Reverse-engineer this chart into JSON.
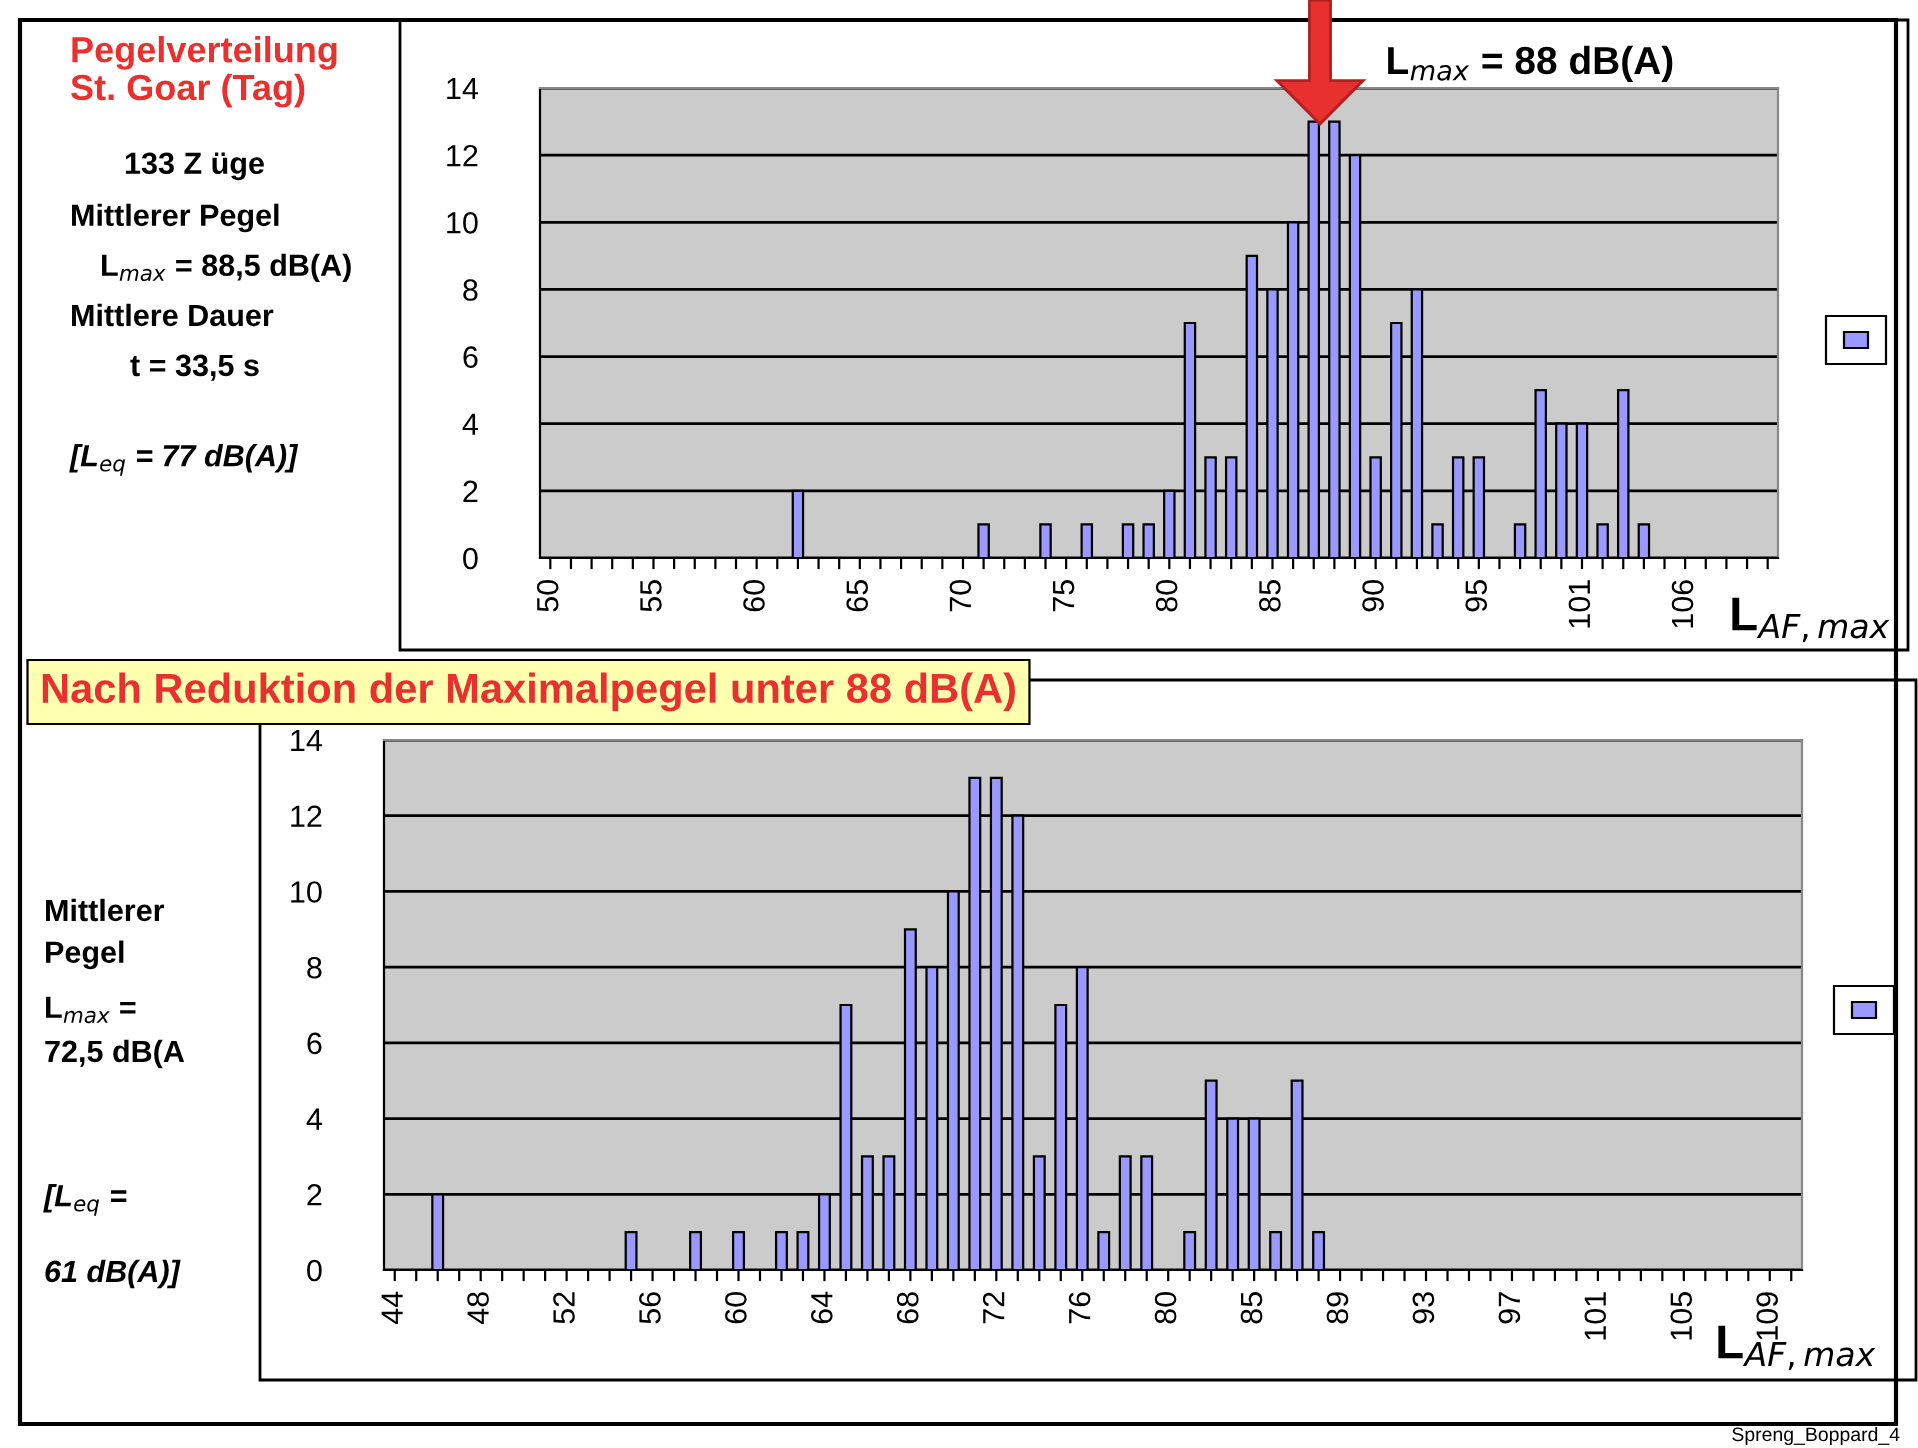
{
  "chart_data": [
    {
      "type": "bar",
      "title": "Pegelverteilung\nSt. Goar (Tag)",
      "xlabel": "L$_{AF,max}$",
      "annotations": [
        "133 Z üge",
        "Mittlerer Pegel",
        "L$_{max}$ = 88,5 dB(A)",
        "Mittlere Dauer",
        "t = 33,5 s",
        "[L$_{eq}$ = 77 dB(A)]",
        "L$_{max}$ = 88 dB(A)"
      ],
      "categories": [
        "50",
        null,
        null,
        null,
        null,
        "55",
        null,
        null,
        null,
        null,
        "60",
        null,
        null,
        null,
        null,
        "65",
        null,
        null,
        null,
        null,
        "70",
        null,
        null,
        null,
        null,
        "75",
        null,
        null,
        null,
        null,
        "80",
        null,
        null,
        null,
        null,
        "85",
        null,
        null,
        null,
        null,
        "90",
        null,
        null,
        null,
        null,
        "95",
        null,
        null,
        null,
        null,
        "101",
        null,
        null,
        null,
        null,
        "106",
        null,
        null,
        null,
        null
      ],
      "values": [
        0,
        0,
        0,
        0,
        0,
        0,
        0,
        0,
        0,
        0,
        0,
        0,
        2,
        0,
        0,
        0,
        0,
        0,
        0,
        0,
        0,
        1,
        0,
        0,
        1,
        0,
        1,
        0,
        1,
        1,
        2,
        7,
        3,
        3,
        9,
        8,
        10,
        13,
        13,
        12,
        3,
        7,
        8,
        1,
        3,
        3,
        0,
        1,
        5,
        4,
        4,
        1,
        5,
        1,
        0,
        0,
        0,
        0,
        0,
        0
      ],
      "color": "#9999ff",
      "ylim": [
        0,
        14
      ],
      "yticks": [
        0,
        2,
        4,
        6,
        8,
        10,
        12,
        14
      ],
      "grid": "y"
    },
    {
      "type": "bar",
      "title": "Nach Reduktion der Maximalpegel unter 88 dB(A)",
      "xlabel": "L$_{AF,max}$",
      "annotations": [
        "Mittlerer\nPegel",
        "L$_{max}$ =",
        "72,5 dB(A",
        "[L$_{eq}$ =",
        "61 dB(A)]",
        "Spreng_Boppard_4"
      ],
      "categories": [
        "44",
        null,
        null,
        null,
        "48",
        null,
        null,
        null,
        "52",
        null,
        null,
        null,
        "56",
        null,
        null,
        null,
        "60",
        null,
        null,
        null,
        "64",
        null,
        null,
        null,
        "68",
        null,
        null,
        null,
        "72",
        null,
        null,
        null,
        "76",
        null,
        null,
        null,
        "80",
        null,
        null,
        null,
        "85",
        null,
        null,
        null,
        "89",
        null,
        null,
        null,
        "93",
        null,
        null,
        null,
        "97",
        null,
        null,
        null,
        "101",
        null,
        null,
        null,
        "105",
        null,
        null,
        null,
        "109",
        null
      ],
      "values": [
        0,
        0,
        2,
        0,
        0,
        0,
        0,
        0,
        0,
        0,
        0,
        1,
        0,
        0,
        1,
        0,
        1,
        0,
        1,
        1,
        2,
        7,
        3,
        3,
        9,
        8,
        10,
        13,
        13,
        12,
        3,
        7,
        8,
        1,
        3,
        3,
        0,
        1,
        5,
        4,
        4,
        1,
        5,
        1,
        0,
        0,
        0,
        0,
        0,
        0,
        0,
        0,
        0,
        0,
        0,
        0,
        0,
        0,
        0,
        0,
        0,
        0,
        0,
        0,
        0,
        0
      ],
      "color": "#9999ff",
      "ylim": [
        0,
        14
      ],
      "yticks": [
        0,
        2,
        4,
        6,
        8,
        10,
        12,
        14
      ],
      "grid": "y"
    }
  ]
}
